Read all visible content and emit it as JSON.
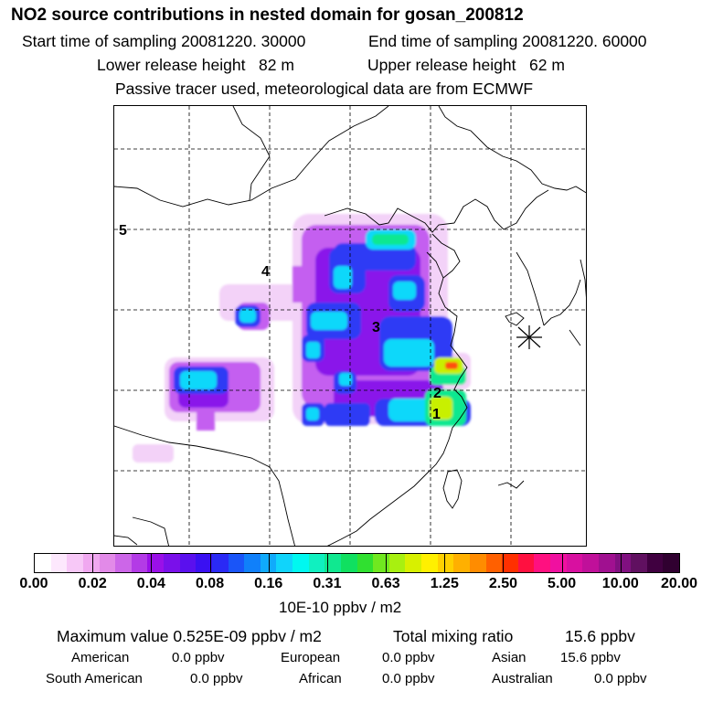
{
  "header": {
    "title": "NO2 source contributions in nested domain for gosan_200812",
    "start_label": "Start time of sampling 20081220. 30000",
    "end_label": "End time of sampling 20081220. 60000",
    "lower_label": "Lower release height   82 m",
    "upper_label": "Upper release height   62 m",
    "note": "Passive tracer used, meteorological data are from ECMWF"
  },
  "map": {
    "region_labels": [
      "1",
      "2",
      "3",
      "4",
      "5"
    ],
    "receptor_marker": "star-receptor-icon",
    "max_concentration_value": 0.525
  },
  "colorbar": {
    "tick_labels": [
      "0.00",
      "0.02",
      "0.04",
      "0.08",
      "0.16",
      "0.31",
      "0.63",
      "1.25",
      "2.50",
      "5.00",
      "10.00",
      "20.00"
    ],
    "colors": [
      "#ffffff",
      "#fde8fd",
      "#f7c8f7",
      "#f0a8f0",
      "#e28ae8",
      "#cc66e8",
      "#b33be6",
      "#9a10e8",
      "#7a10ea",
      "#5a10ee",
      "#3a10f2",
      "#2a2af5",
      "#1a55f8",
      "#1080fa",
      "#10aafb",
      "#10d4fb",
      "#00f8f0",
      "#10f0c0",
      "#10e890",
      "#10e060",
      "#30e030",
      "#70e820",
      "#a8f010",
      "#d8f000",
      "#fff000",
      "#ffd000",
      "#ffb000",
      "#ff8c00",
      "#ff6000",
      "#ff3000",
      "#ff1040",
      "#ff1080",
      "#f010a0",
      "#d810a0",
      "#c0109a",
      "#a01090",
      "#801080",
      "#601060",
      "#400040",
      "#300030"
    ],
    "units": "10E-10 ppbv / m2"
  },
  "summary": {
    "max_label": "Maximum value  0.525E-09 ppbv / m2",
    "total_label": "Total mixing ratio",
    "total_value": "15.6 ppbv",
    "regions": [
      {
        "name": "American",
        "value": "0.0 ppbv"
      },
      {
        "name": "European",
        "value": "0.0 ppbv"
      },
      {
        "name": "Asian",
        "value": "15.6 ppbv"
      },
      {
        "name": "South American",
        "value": "0.0 ppbv"
      },
      {
        "name": "African",
        "value": "0.0 ppbv"
      },
      {
        "name": "Australian",
        "value": "0.0 ppbv"
      }
    ]
  }
}
